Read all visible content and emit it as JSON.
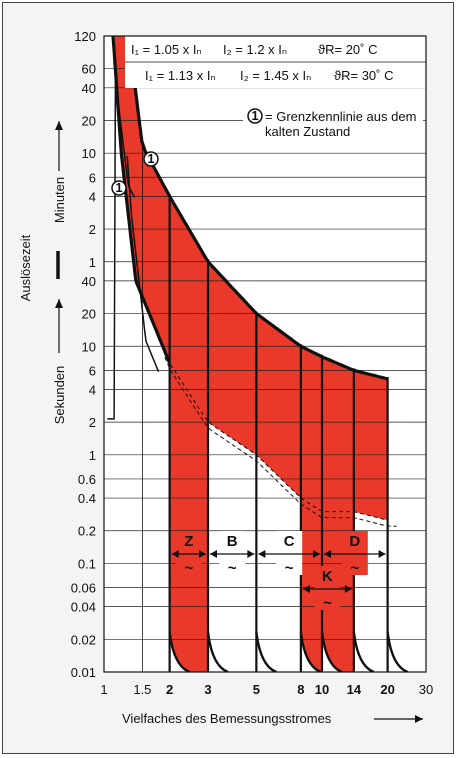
{
  "chart_data": {
    "type": "line",
    "xlabel": "Vielfaches des Bemessungsstromes",
    "ylabel": "Auslösezeit",
    "ylabel_minutes": "Minuten",
    "ylabel_seconds": "Sekunden",
    "x_scale": "log",
    "y_scale": "log",
    "xlim": [
      1,
      30
    ],
    "x_ticks": [
      1,
      1.5,
      2,
      3,
      5,
      8,
      10,
      14,
      20,
      30
    ],
    "x_ticks_bold": [
      2,
      3,
      5,
      8,
      10,
      14,
      20
    ],
    "y_ticks_minutes": [
      "120",
      "60",
      "40",
      "20",
      "10",
      "6",
      "4",
      "2",
      "1"
    ],
    "y_ticks_seconds": [
      "40",
      "20",
      "10",
      "6",
      "4",
      "2",
      "1",
      "0.6",
      "0.4",
      "0.2",
      "0.1",
      "0.06",
      "0.04",
      "0.02",
      "0.01"
    ],
    "legend": {
      "row1": {
        "i1": "I₁ = 1.05 x Iₙ",
        "i2": "I₂ = 1.2 x Iₙ",
        "temp": "ϑR= 20˚ C"
      },
      "row2": {
        "i1": "I₁ = 1.13 x Iₙ",
        "i2": "I₂ = 1.45 x Iₙ",
        "temp": "ϑR= 30˚ C"
      },
      "marker": "1",
      "note_line1": "= Grenzkennlinie aus dem",
      "note_line2": "kalten Zustand"
    },
    "classes": [
      {
        "name": "Z",
        "range": [
          2,
          3
        ]
      },
      {
        "name": "B",
        "range": [
          3,
          5
        ]
      },
      {
        "name": "C",
        "range": [
          5,
          10
        ]
      },
      {
        "name": "K",
        "range": [
          8,
          14
        ]
      },
      {
        "name": "D",
        "range": [
          10,
          20
        ]
      }
    ],
    "tilde": "~",
    "upper_curve_seconds": [
      {
        "x": 1.3,
        "y": 7200
      },
      {
        "x": 1.5,
        "y": 700
      },
      {
        "x": 2,
        "y": 240
      },
      {
        "x": 3,
        "y": 60
      },
      {
        "x": 5,
        "y": 20
      },
      {
        "x": 8,
        "y": 10
      },
      {
        "x": 10,
        "y": 8
      },
      {
        "x": 14,
        "y": 6
      },
      {
        "x": 20,
        "y": 5
      }
    ],
    "lower_curve_seconds": [
      {
        "x": 1.1,
        "y": 7200
      },
      {
        "x": 1.2,
        "y": 600
      },
      {
        "x": 1.4,
        "y": 40
      },
      {
        "x": 2,
        "y": 7
      },
      {
        "x": 3,
        "y": 2
      },
      {
        "x": 5,
        "y": 1
      },
      {
        "x": 8,
        "y": 0.4
      },
      {
        "x": 10,
        "y": 0.3
      },
      {
        "x": 14,
        "y": 0.3
      },
      {
        "x": 20,
        "y": 0.25
      }
    ],
    "colors": {
      "fill": "#e8392a",
      "curve": "#111111",
      "grid": "#222222",
      "background": "#f4f4f4"
    }
  }
}
